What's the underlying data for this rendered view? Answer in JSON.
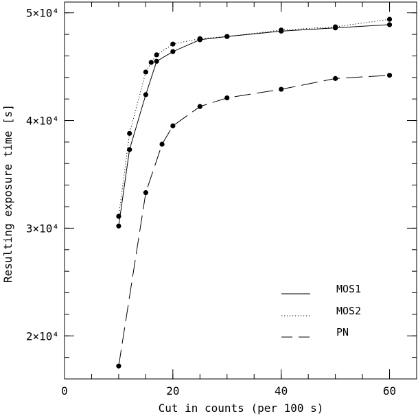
{
  "chart_data": {
    "type": "line",
    "title": "",
    "xlabel": "Cut in counts (per 100 s)",
    "ylabel": "Resulting exposure time [s]",
    "xlim": [
      0,
      65
    ],
    "ylim": [
      16000,
      51000
    ],
    "x_ticks": [
      0,
      20,
      40,
      60
    ],
    "x_minor_step": 5,
    "y_ticks": [
      20000,
      30000,
      40000,
      50000
    ],
    "y_tick_labels": [
      "2×10⁴",
      "3×10⁴",
      "4×10⁴",
      "5×10⁴"
    ],
    "y_minor_step": 2000,
    "legend_position": "bottom-right",
    "grid": false,
    "series": [
      {
        "name": "MOS1",
        "style": "solid",
        "x": [
          10,
          12,
          15,
          17,
          20,
          25,
          30,
          40,
          50,
          60
        ],
        "y": [
          30200,
          37300,
          42400,
          45500,
          46400,
          47500,
          47800,
          48300,
          48600,
          48900
        ]
      },
      {
        "name": "MOS2",
        "style": "dotted",
        "x": [
          10,
          12,
          15,
          16,
          17,
          20,
          25,
          30,
          40,
          50,
          60
        ],
        "y": [
          31100,
          38800,
          44500,
          45400,
          46100,
          47100,
          47600,
          47800,
          48400,
          48700,
          49400
        ]
      },
      {
        "name": "PN",
        "style": "dashed",
        "x": [
          10,
          15,
          18,
          20,
          25,
          30,
          40,
          50,
          60
        ],
        "y": [
          17200,
          33300,
          37800,
          39500,
          41300,
          42100,
          42900,
          43900,
          44200
        ]
      }
    ]
  }
}
